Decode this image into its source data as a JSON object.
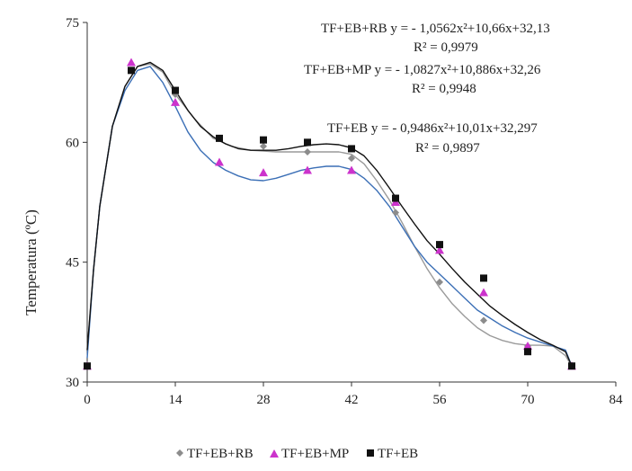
{
  "chart_data": {
    "type": "scatter",
    "title": "",
    "xlabel": "",
    "ylabel": "Temperatura (ºC)",
    "xlim": [
      0,
      84
    ],
    "ylim": [
      30,
      75
    ],
    "xticks": [
      0,
      14,
      28,
      42,
      56,
      70,
      84
    ],
    "yticks": [
      30,
      45,
      60,
      75
    ],
    "grid": false,
    "legend_position": "bottom",
    "series": [
      {
        "name": "TF+EB+RB",
        "marker": "diamond",
        "color": "#8c8c8c",
        "line_color": "#9a9a9a",
        "x": [
          0,
          7,
          14,
          21,
          28,
          35,
          42,
          49,
          56,
          63,
          70,
          77
        ],
        "y": [
          32,
          69,
          66,
          60.5,
          59.5,
          58.8,
          58,
          51.2,
          42.5,
          37.7,
          34.5,
          32
        ],
        "fit": {
          "x": [
            0,
            1,
            2,
            4,
            6,
            8,
            10,
            12,
            14,
            17,
            20,
            23,
            26,
            28,
            30,
            33,
            36,
            38,
            40,
            42,
            44,
            46,
            48,
            50,
            52,
            54,
            56,
            58,
            60,
            62,
            64,
            66,
            68,
            70,
            72,
            74,
            76,
            77
          ],
          "y": [
            34,
            44,
            52,
            62,
            67,
            69.5,
            69.8,
            68.8,
            66,
            63,
            60.5,
            59.5,
            59,
            58.9,
            58.8,
            58.8,
            58.8,
            58.8,
            58.8,
            58.5,
            57.3,
            55.2,
            52.8,
            50,
            47,
            44.2,
            41.8,
            39.8,
            38.2,
            36.8,
            35.8,
            35.2,
            34.8,
            34.6,
            34.6,
            34.5,
            33.3,
            32
          ]
        }
      },
      {
        "name": "TF+EB+MP",
        "marker": "triangle",
        "color": "#cc33cc",
        "line_color": "#3b6fb6",
        "x": [
          0,
          7,
          14,
          21,
          28,
          35,
          42,
          49,
          56,
          63,
          70,
          77
        ],
        "y": [
          32,
          70,
          65,
          57.5,
          56.2,
          56.5,
          56.5,
          52.5,
          46.5,
          41.2,
          34.5,
          32
        ],
        "fit": {
          "x": [
            0,
            1,
            2,
            4,
            6,
            8,
            10,
            12,
            14,
            16,
            18,
            20,
            22,
            24,
            26,
            28,
            30,
            32,
            34,
            36,
            38,
            40,
            42,
            44,
            46,
            48,
            50,
            52,
            54,
            56,
            58,
            60,
            62,
            64,
            66,
            68,
            70,
            72,
            74,
            76,
            77
          ],
          "y": [
            33,
            44,
            52,
            62,
            66.5,
            69,
            69.5,
            67.5,
            64.5,
            61.3,
            59,
            57.5,
            56.5,
            55.8,
            55.3,
            55.2,
            55.5,
            56,
            56.5,
            56.8,
            57,
            57,
            56.6,
            55.5,
            54,
            52,
            49.5,
            47,
            45,
            43.5,
            42,
            40.5,
            39,
            38,
            37,
            36.2,
            35.5,
            35,
            34.5,
            34,
            32
          ]
        }
      },
      {
        "name": "TF+EB",
        "marker": "square",
        "color": "#111111",
        "line_color": "#111111",
        "x": [
          0,
          7,
          14,
          21,
          28,
          35,
          42,
          49,
          56,
          63,
          70,
          77
        ],
        "y": [
          32,
          69,
          66.5,
          60.5,
          60.3,
          60,
          59.2,
          53,
          47.2,
          43,
          33.8,
          32
        ],
        "fit": {
          "x": [
            0,
            1,
            2,
            4,
            6,
            8,
            10,
            12,
            14,
            16,
            18,
            20,
            22,
            24,
            26,
            28,
            30,
            32,
            34,
            36,
            38,
            40,
            42,
            44,
            46,
            48,
            50,
            52,
            54,
            56,
            58,
            60,
            62,
            64,
            66,
            68,
            70,
            72,
            74,
            76,
            77
          ],
          "y": [
            34,
            44,
            52,
            62,
            67,
            69.5,
            70,
            69,
            66.5,
            64,
            62,
            60.7,
            59.8,
            59.2,
            59,
            59,
            59,
            59.2,
            59.5,
            59.7,
            59.8,
            59.7,
            59.3,
            58.3,
            56.5,
            54.3,
            52,
            49.8,
            47.7,
            46,
            44.2,
            42.5,
            41,
            39.5,
            38.3,
            37.2,
            36.2,
            35.3,
            34.6,
            33.8,
            32
          ]
        }
      }
    ],
    "annotations": [
      {
        "series": "TF+EB+RB",
        "equation": "TF+EB+RB  y = - 1,0562x²+10,66x+32,13",
        "r2": "R² = 0,9979"
      },
      {
        "series": "TF+EB+MP",
        "equation": "TF+EB+MP  y = - 1,0827x²+10,886x+32,26",
        "r2": "R² = 0,9948"
      },
      {
        "series": "TF+EB",
        "equation": "TF+EB  y = - 0,9486x²+10,01x+32,297",
        "r2": "R² = 0,9897"
      }
    ]
  }
}
